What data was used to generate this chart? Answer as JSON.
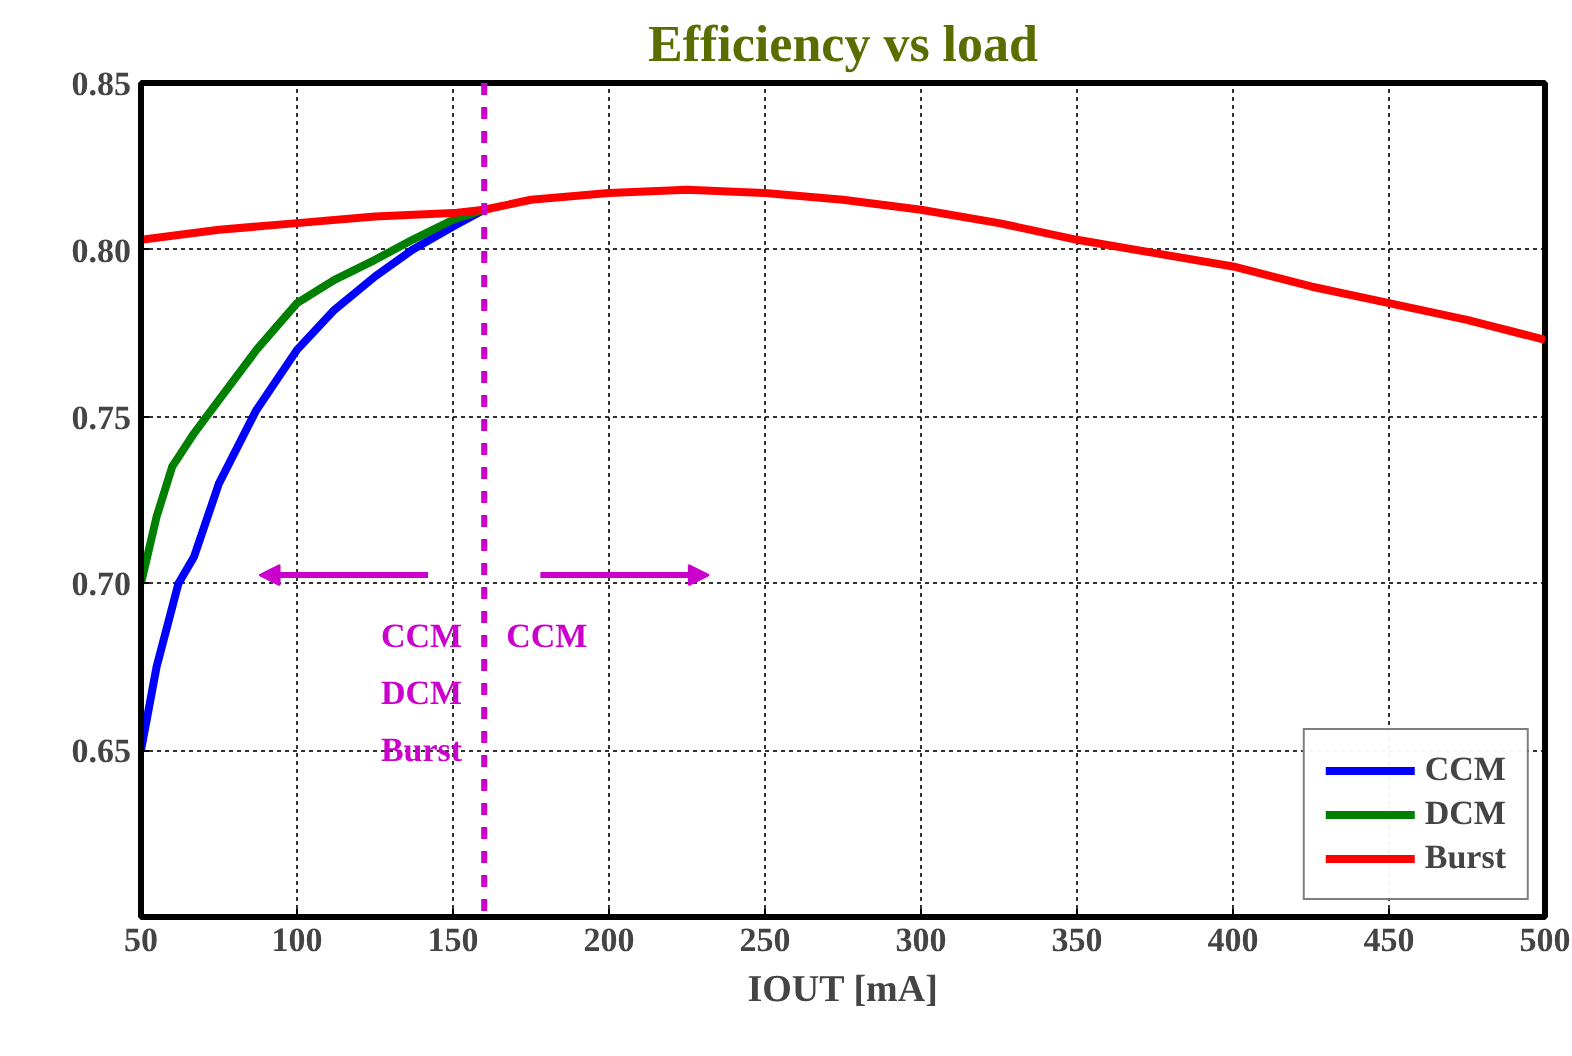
{
  "chart_data": {
    "type": "line",
    "title": "Efficiency vs load",
    "xlabel": "IOUT [mA]",
    "series": [
      {
        "name": "CCM",
        "color": "#0000ff",
        "x": [
          50,
          55,
          62,
          67,
          75,
          87,
          100,
          112,
          125,
          137,
          150,
          160
        ],
        "values": [
          0.65,
          0.675,
          0.7,
          0.708,
          0.73,
          0.752,
          0.77,
          0.782,
          0.792,
          0.8,
          0.807,
          0.812
        ]
      },
      {
        "name": "DCM",
        "color": "#008000",
        "x": [
          50,
          55,
          60,
          67,
          75,
          87,
          100,
          112,
          125,
          137,
          150,
          160
        ],
        "values": [
          0.7,
          0.72,
          0.735,
          0.745,
          0.755,
          0.77,
          0.784,
          0.791,
          0.797,
          0.803,
          0.809,
          0.812
        ]
      },
      {
        "name": "Burst",
        "color": "#ff0000",
        "x": [
          50,
          75,
          100,
          125,
          150,
          160,
          175,
          200,
          225,
          250,
          275,
          300,
          325,
          350,
          375,
          400,
          425,
          450,
          475,
          500
        ],
        "values": [
          0.803,
          0.806,
          0.808,
          0.81,
          0.811,
          0.812,
          0.815,
          0.817,
          0.818,
          0.817,
          0.815,
          0.812,
          0.808,
          0.803,
          0.799,
          0.795,
          0.789,
          0.784,
          0.779,
          0.773
        ]
      }
    ],
    "xlim": [
      50,
      500
    ],
    "ylim": [
      0.6,
      0.85
    ],
    "xticks": [
      50,
      100,
      150,
      200,
      250,
      300,
      350,
      400,
      450,
      500
    ],
    "yticks": [
      {
        "value": 0.65,
        "label": "0.65"
      },
      {
        "value": 0.7,
        "label": "0.70"
      },
      {
        "value": 0.75,
        "label": "0.75"
      },
      {
        "value": 0.8,
        "label": "0.80"
      },
      {
        "value": 0.85,
        "label": "0.85"
      }
    ],
    "ref_lines": [
      {
        "axis": "x",
        "value": 160,
        "color": "#cc00cc",
        "line_style": "dashed"
      }
    ],
    "annotations": [
      "CCM\nDCM\nBurst",
      "CCM"
    ],
    "grid": true,
    "legend": "bottom right",
    "line_style": "solid",
    "marker": "none"
  }
}
